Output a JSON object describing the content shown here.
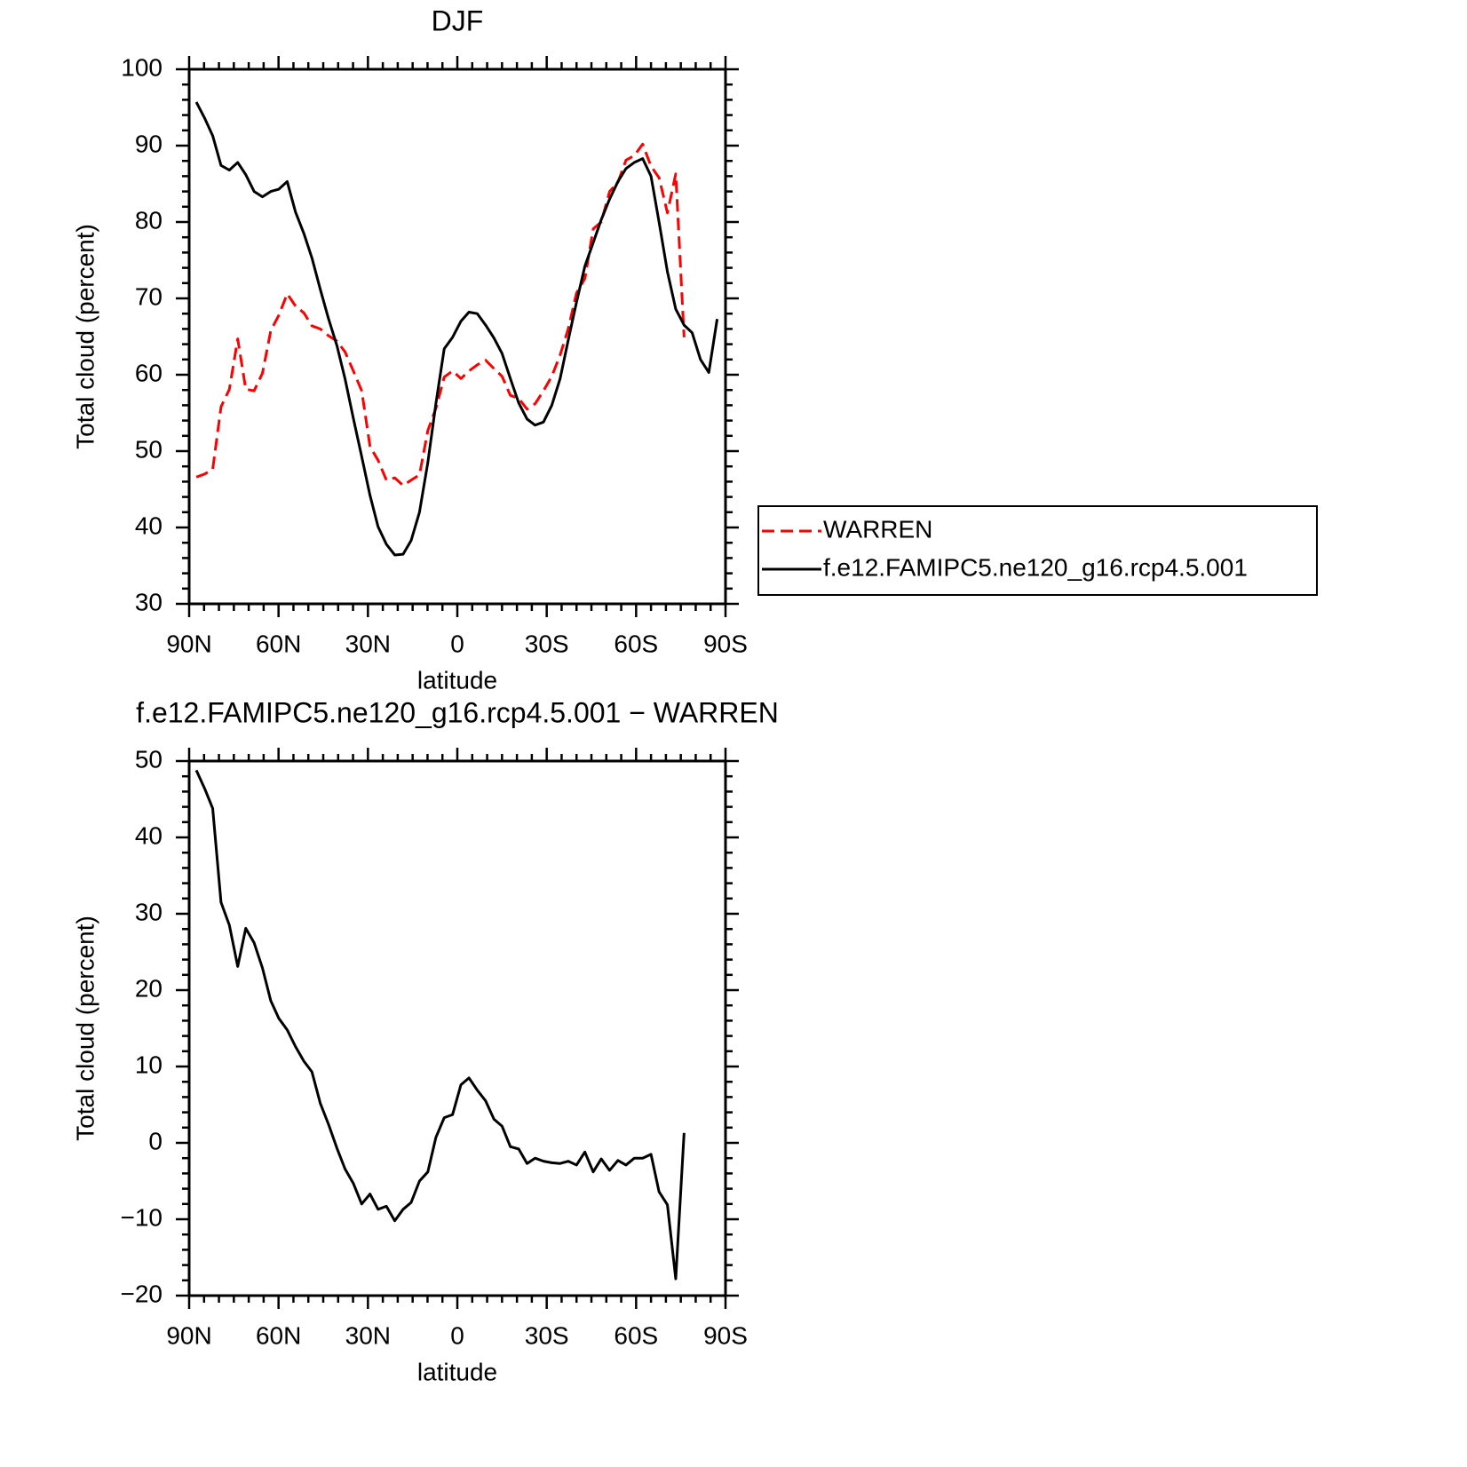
{
  "chart_data": [
    {
      "type": "line",
      "title": "DJF",
      "xlabel": "latitude",
      "ylabel": "Total cloud (percent)",
      "x": [
        87.6,
        84.8,
        82.1,
        79.3,
        76.5,
        73.7,
        71.0,
        68.2,
        65.4,
        62.6,
        59.9,
        57.1,
        54.3,
        51.5,
        48.8,
        46.0,
        43.2,
        40.4,
        37.7,
        34.9,
        32.1,
        29.3,
        26.6,
        23.8,
        21.0,
        18.2,
        15.5,
        12.7,
        9.9,
        7.2,
        4.4,
        1.6,
        -1.2,
        -3.9,
        -6.7,
        -9.5,
        -12.3,
        -15.0,
        -17.8,
        -20.6,
        -23.4,
        -26.1,
        -28.9,
        -31.7,
        -34.5,
        -37.2,
        -40.0,
        -42.8,
        -45.6,
        -48.3,
        -51.1,
        -53.9,
        -56.6,
        -59.4,
        -62.2,
        -65.0,
        -67.7,
        -70.5,
        -73.3,
        -76.1,
        -78.8,
        -81.6,
        -84.4,
        -87.2
      ],
      "series": [
        {
          "name": "WARREN",
          "color": "#ff0000",
          "dash": true,
          "values": [
            46.6,
            47.0,
            47.6,
            55.8,
            58.1,
            64.7,
            58.1,
            57.9,
            60.2,
            65.8,
            67.8,
            70.6,
            69.0,
            68.1,
            66.4,
            66.0,
            65.1,
            64.4,
            63.0,
            60.5,
            57.9,
            50.6,
            48.8,
            46.2,
            46.5,
            45.5,
            46.2,
            46.9,
            52.7,
            55.6,
            59.7,
            60.5,
            59.5,
            60.5,
            61.3,
            61.9,
            60.8,
            59.8,
            57.3,
            56.9,
            55.5,
            56.2,
            57.9,
            59.8,
            62.6,
            66.0,
            70.7,
            72.6,
            79.1,
            80.0,
            84.0,
            85.2,
            88.1,
            88.7,
            90.2,
            87.3,
            85.8,
            81.2,
            86.3,
            64.9,
            null,
            null,
            null,
            null
          ]
        },
        {
          "name": "f.e12.FAMIPC5.ne120_g16.rcp4.5.001",
          "color": "#000000",
          "dash": false,
          "values": [
            95.7,
            93.6,
            91.3,
            87.4,
            86.8,
            87.8,
            86.2,
            84.0,
            83.3,
            84.0,
            84.3,
            85.3,
            81.3,
            78.5,
            75.3,
            71.2,
            67.3,
            63.8,
            59.5,
            54.3,
            49.3,
            44.2,
            40.1,
            37.8,
            36.4,
            36.5,
            38.3,
            42.0,
            48.5,
            56.2,
            63.4,
            64.9,
            67.0,
            68.2,
            68.0,
            66.5,
            64.8,
            62.8,
            59.5,
            56.3,
            54.2,
            53.4,
            53.8,
            56.0,
            59.5,
            64.5,
            69.5,
            74.2,
            77.3,
            80.3,
            83.0,
            85.3,
            87.0,
            87.8,
            88.3,
            86.0,
            80.0,
            73.5,
            68.6,
            66.5,
            65.5,
            62.0,
            60.3,
            67.3
          ]
        }
      ],
      "xlim": [
        90,
        -90
      ],
      "xticks": [
        {
          "value": 90,
          "label": "90N"
        },
        {
          "value": 60,
          "label": "60N"
        },
        {
          "value": 30,
          "label": "30N"
        },
        0,
        {
          "value": -30,
          "label": "30S"
        },
        {
          "value": -60,
          "label": "60S"
        },
        {
          "value": -90,
          "label": "90S"
        }
      ],
      "ylim": [
        30,
        100
      ],
      "yticks": [
        30,
        40,
        50,
        60,
        70,
        80,
        90,
        100
      ],
      "legend": "right"
    },
    {
      "type": "line",
      "title": "f.e12.FAMIPC5.ne120_g16.rcp4.5.001 − WARREN",
      "xlabel": "latitude",
      "ylabel": "Total cloud (percent)",
      "x": [
        87.6,
        84.8,
        82.1,
        79.3,
        76.5,
        73.7,
        71.0,
        68.2,
        65.4,
        62.6,
        59.9,
        57.1,
        54.3,
        51.5,
        48.8,
        46.0,
        43.2,
        40.4,
        37.7,
        34.9,
        32.1,
        29.3,
        26.6,
        23.8,
        21.0,
        18.2,
        15.5,
        12.7,
        9.9,
        7.2,
        4.4,
        1.6,
        -1.2,
        -3.9,
        -6.7,
        -9.5,
        -12.3,
        -15.0,
        -17.8,
        -20.6,
        -23.4,
        -26.1,
        -28.9,
        -31.7,
        -34.5,
        -37.2,
        -40.0,
        -42.8,
        -45.6,
        -48.3,
        -51.1,
        -53.9,
        -56.6,
        -59.4,
        -62.2,
        -65.0,
        -67.7,
        -70.5,
        -73.3,
        -76.1,
        -78.8,
        -81.6,
        -84.4,
        -87.2
      ],
      "series": [
        {
          "color": "#000000",
          "dash": false,
          "values": [
            48.8,
            46.4,
            43.8,
            31.5,
            28.5,
            23.1,
            28.1,
            26.2,
            22.9,
            18.6,
            16.3,
            14.8,
            12.6,
            10.7,
            9.3,
            5.2,
            2.4,
            -0.7,
            -3.4,
            -5.3,
            -8.0,
            -6.7,
            -8.7,
            -8.3,
            -10.2,
            -8.7,
            -7.8,
            -5.0,
            -3.8,
            0.7,
            3.3,
            3.7,
            7.6,
            8.5,
            6.9,
            5.5,
            3.1,
            2.2,
            -0.5,
            -0.8,
            -2.7,
            -2.0,
            -2.4,
            -2.6,
            -2.7,
            -2.4,
            -2.9,
            -1.2,
            -3.8,
            -2.1,
            -3.6,
            -2.3,
            -2.9,
            -2.0,
            -2.0,
            -1.5,
            -6.4,
            -8.1,
            -17.8,
            1.3,
            null,
            null,
            null,
            null
          ]
        }
      ],
      "xlim": [
        90,
        -90
      ],
      "xticks": [
        {
          "value": 90,
          "label": "90N"
        },
        {
          "value": 60,
          "label": "60N"
        },
        {
          "value": 30,
          "label": "30N"
        },
        0,
        {
          "value": -30,
          "label": "30S"
        },
        {
          "value": -60,
          "label": "60S"
        },
        {
          "value": -90,
          "label": "90S"
        }
      ],
      "ylim": [
        -20,
        50
      ],
      "yticks": [
        {
          "value": -20,
          "label": "−20"
        },
        {
          "value": -10,
          "label": "−10"
        },
        0,
        10,
        20,
        30,
        40,
        50
      ]
    }
  ]
}
